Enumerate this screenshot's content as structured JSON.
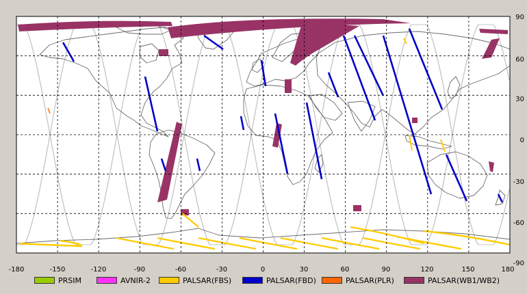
{
  "map": {
    "lon_ticks": [
      "-180",
      "-150",
      "-120",
      "-90",
      "-60",
      "-30",
      "0",
      "30",
      "60",
      "90",
      "120",
      "150",
      "180"
    ],
    "lat_ticks": [
      "90",
      "60",
      "30",
      "0",
      "-30",
      "-60",
      "-90"
    ],
    "colors": {
      "ocean": "#ffffff",
      "coast": "#6a6a6a",
      "orbit": "#c4c4c4",
      "grid": "#000000",
      "frame_bg": "#d4d0c8"
    }
  },
  "legend": {
    "items": [
      {
        "label": "PRSIM",
        "color": "#99cc00"
      },
      {
        "label": "AVNIR-2",
        "color": "#ff33ff"
      },
      {
        "label": "PALSAR(FBS)",
        "color": "#ffcc00"
      },
      {
        "label": "PALSAR(FBD)",
        "color": "#0000cc"
      },
      {
        "label": "PALSAR(PLR)",
        "color": "#ff6600"
      },
      {
        "label": "PALSAR(WB1/WB2)",
        "color": "#993366"
      }
    ]
  }
}
